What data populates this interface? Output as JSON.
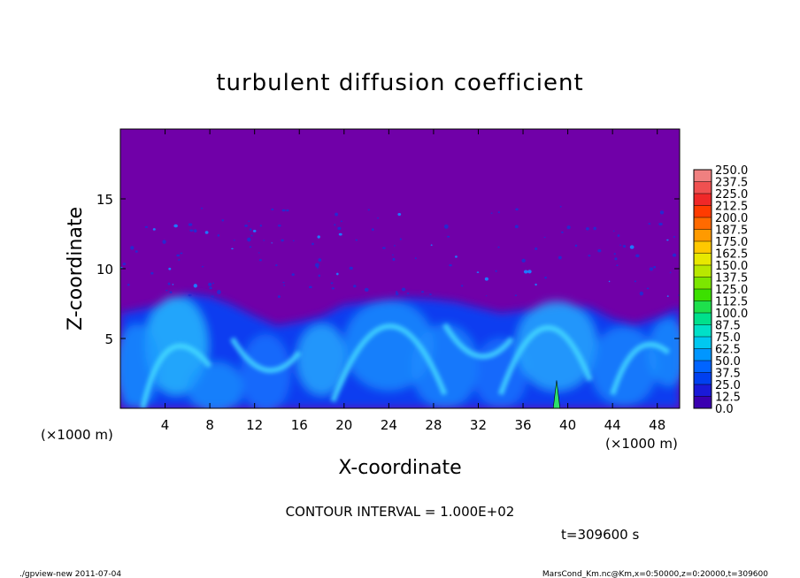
{
  "chart_data": {
    "type": "heatmap",
    "title": "turbulent diffusion coefficient",
    "xlabel": "X-coordinate",
    "ylabel": "Z-coordinate",
    "x_unit": "(×1000 m)",
    "y_unit": "(×1000 m)",
    "xlim": [
      0,
      50
    ],
    "ylim": [
      0,
      20
    ],
    "x_ticks": [
      "4",
      "8",
      "12",
      "16",
      "20",
      "24",
      "28",
      "32",
      "36",
      "40",
      "44",
      "48"
    ],
    "y_ticks": [
      "5",
      "10",
      "15"
    ],
    "colorbar": {
      "levels": [
        "250.0",
        "237.5",
        "225.0",
        "212.5",
        "200.0",
        "187.5",
        "175.0",
        "162.5",
        "150.0",
        "137.5",
        "125.0",
        "112.5",
        "100.0",
        "87.5",
        "75.0",
        "62.5",
        "50.0",
        "37.5",
        "25.0",
        "12.5",
        "0.0"
      ],
      "colors": [
        "#f08080",
        "#f05050",
        "#f02828",
        "#ff3b00",
        "#ff6a00",
        "#ff9a00",
        "#ffc800",
        "#e8e800",
        "#b8e800",
        "#7ce600",
        "#3ce000",
        "#1ee04c",
        "#00e08c",
        "#00e0c8",
        "#00c8f0",
        "#0096ff",
        "#0064ff",
        "#0040f0",
        "#1a1ad8",
        "#3a00b0"
      ],
      "background_color": "#7000a8"
    },
    "field_description": "Mixed layer of high values (blue to cyan) below about 6-8 km with convective plumes; above it near-zero values with scattered small patches; a thin green spike near x=39 reaching about 2 km."
  },
  "contour_interval": "CONTOUR INTERVAL = 1.000E+02",
  "time_label": "t=309600  s",
  "footer_left": "./gpview-new   2011-07-04",
  "footer_right": "MarsCond_Km.nc@Km,x=0:50000,z=0:20000,t=309600"
}
